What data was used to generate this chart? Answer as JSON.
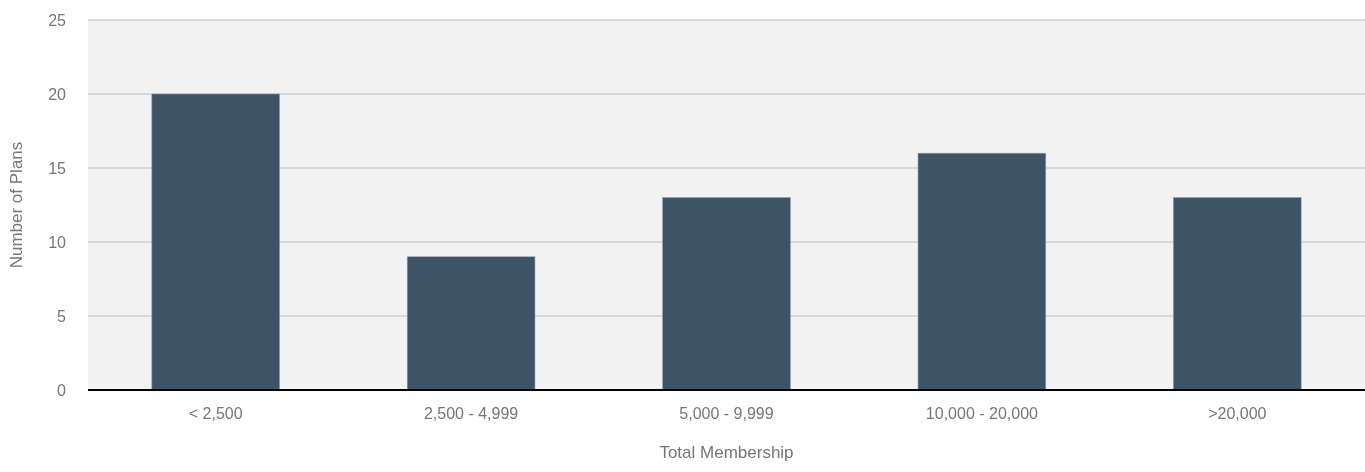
{
  "chart_data": {
    "type": "bar",
    "xlabel": "Total Membership",
    "ylabel": "Number of Plans",
    "categories": [
      "< 2,500",
      "2,500 - 4,999",
      "5,000 - 9,999",
      "10,000 - 20,000",
      ">20,000"
    ],
    "values": [
      20,
      9,
      13,
      16,
      13
    ],
    "color": "#3d5366",
    "ylim": [
      0,
      25
    ],
    "yticks": [
      0,
      5,
      10,
      15,
      20,
      25
    ],
    "grid": "y",
    "legend": false
  }
}
